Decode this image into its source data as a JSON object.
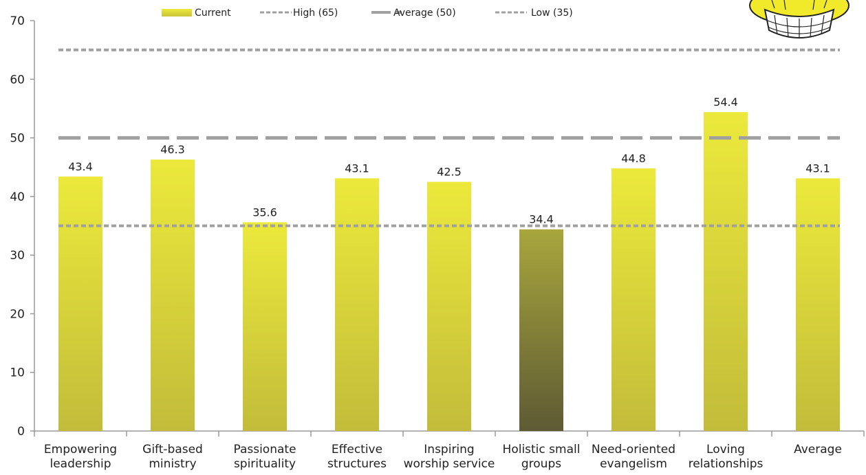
{
  "chart_data": {
    "type": "bar",
    "categories": [
      [
        "Empowering",
        "leadership"
      ],
      [
        "Gift-based",
        "ministry"
      ],
      [
        "Passionate",
        "spirituality"
      ],
      [
        "Effective",
        "structures"
      ],
      [
        "Inspiring",
        "worship service"
      ],
      [
        "Holistic small",
        "groups"
      ],
      [
        "Need-oriented",
        "evangelism"
      ],
      [
        "Loving",
        "relationships"
      ],
      [
        "Average"
      ]
    ],
    "series": [
      {
        "name": "Current",
        "values": [
          43.4,
          46.3,
          35.6,
          43.1,
          42.5,
          34.4,
          44.8,
          54.4,
          43.1
        ],
        "data_labels": [
          "43.4",
          "46.3",
          "35.6",
          "43.1",
          "42.5",
          "34.4",
          "44.8",
          "54.4",
          "43.1"
        ]
      }
    ],
    "reference_lines": [
      {
        "name": "High (65)",
        "value": 65,
        "style": "dotted"
      },
      {
        "name": "Average (50)",
        "value": 50,
        "style": "dashed"
      },
      {
        "name": "Low (35)",
        "value": 35,
        "style": "dotted"
      }
    ],
    "highlighted_category_index": 5,
    "ylim": [
      0,
      70
    ],
    "yticks": [
      0,
      10,
      20,
      30,
      40,
      50,
      60,
      70
    ],
    "grid": false,
    "legend_position": "top",
    "title": "",
    "xlabel": "",
    "ylabel": "",
    "colors": {
      "bar_top": "#ece93b",
      "bar_bottom": "#c2bc3a",
      "highlight_top": "#a8a63c",
      "highlight_bottom": "#5e5a34",
      "reference_line": "#a0a0a0",
      "axis": "#9a9a9a"
    }
  },
  "decor": {
    "icon": "yellow-cup-illustration-icon"
  }
}
